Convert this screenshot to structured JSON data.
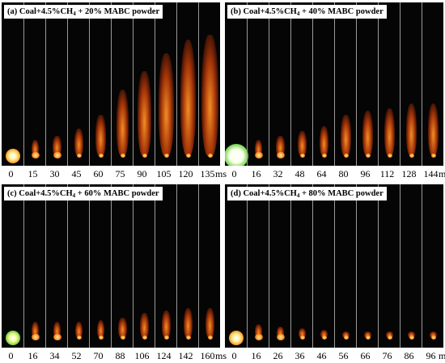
{
  "panels": [
    {
      "id": "a",
      "caption_prefix": "(a) Coal+4.5%CH",
      "caption_sub": "4",
      "caption_suffix": " + 20% MABC powder",
      "times": [
        "0",
        "15",
        "30",
        "45",
        "60",
        "75",
        "90",
        "105",
        "120",
        "135"
      ],
      "unit": "ms",
      "plume": [
        0.08,
        0.12,
        0.15,
        0.2,
        0.3,
        0.48,
        0.62,
        0.75,
        0.85,
        0.88
      ],
      "core": "white-yellow"
    },
    {
      "id": "b",
      "caption_prefix": "(b) Coal+4.5%CH",
      "caption_sub": "4",
      "caption_suffix": " + 40% MABC powder",
      "times": [
        "0",
        "16",
        "32",
        "48",
        "64",
        "80",
        "96",
        "112",
        "128",
        "144"
      ],
      "unit": "ms",
      "plume": [
        0.12,
        0.12,
        0.15,
        0.18,
        0.22,
        0.3,
        0.33,
        0.35,
        0.38,
        0.38
      ],
      "core": "green-white"
    },
    {
      "id": "c",
      "caption_prefix": "(c) Coal+4.5%CH",
      "caption_sub": "4",
      "caption_suffix": " + 60% MABC powder",
      "times": [
        "0",
        "16",
        "34",
        "52",
        "70",
        "88",
        "106",
        "124",
        "142",
        "160"
      ],
      "unit": "ms",
      "plume": [
        0.14,
        0.12,
        0.12,
        0.12,
        0.13,
        0.15,
        0.18,
        0.2,
        0.22,
        0.22
      ],
      "core": "green-yellow"
    },
    {
      "id": "d",
      "caption_prefix": "(d) Coal+4.5%CH",
      "caption_sub": "4",
      "caption_suffix": " + 80% MABC powder",
      "times": [
        "0",
        "16",
        "26",
        "36",
        "46",
        "56",
        "66",
        "76",
        "86",
        "96"
      ],
      "unit": "ms",
      "plume": [
        0.12,
        0.1,
        0.08,
        0.07,
        0.06,
        0.05,
        0.04,
        0.03,
        0.02,
        0.02
      ],
      "core": "orange-white"
    }
  ]
}
